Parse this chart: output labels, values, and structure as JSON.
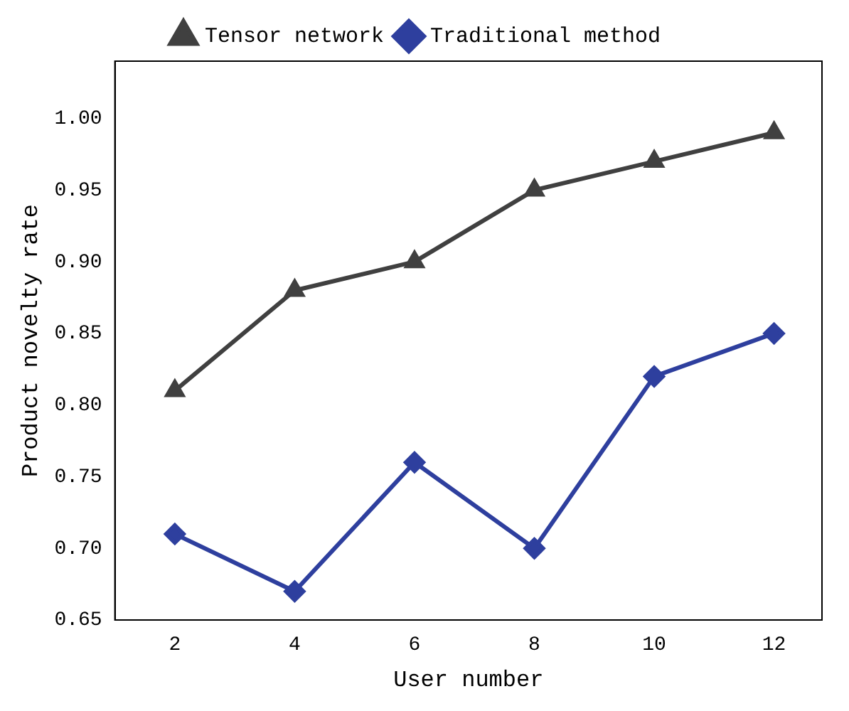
{
  "chart_data": {
    "type": "line",
    "xlabel": "User number",
    "ylabel": "Product novelty rate",
    "x": [
      2,
      4,
      6,
      8,
      10,
      12
    ],
    "series": [
      {
        "name": "Tensor network",
        "color": "#404040",
        "marker": "triangle",
        "values": [
          0.81,
          0.88,
          0.9,
          0.95,
          0.97,
          0.99
        ]
      },
      {
        "name": "Traditional method",
        "color": "#2e3f9e",
        "marker": "diamond",
        "values": [
          0.71,
          0.67,
          0.76,
          0.7,
          0.82,
          0.85
        ]
      }
    ],
    "xlim": [
      1,
      12.8
    ],
    "xticks": [
      2,
      4,
      6,
      8,
      10,
      12
    ],
    "ylim": [
      0.65,
      1.04
    ],
    "yticks": [
      0.65,
      {
        "value": 0.7,
        "label": "0.70"
      },
      0.75,
      {
        "value": 0.8,
        "label": "0.80"
      },
      0.85,
      {
        "value": 0.9,
        "label": "0.90"
      },
      0.95,
      {
        "value": 1,
        "label": "1.00"
      }
    ],
    "grid": false,
    "legend": "top",
    "line_style": "solid"
  }
}
